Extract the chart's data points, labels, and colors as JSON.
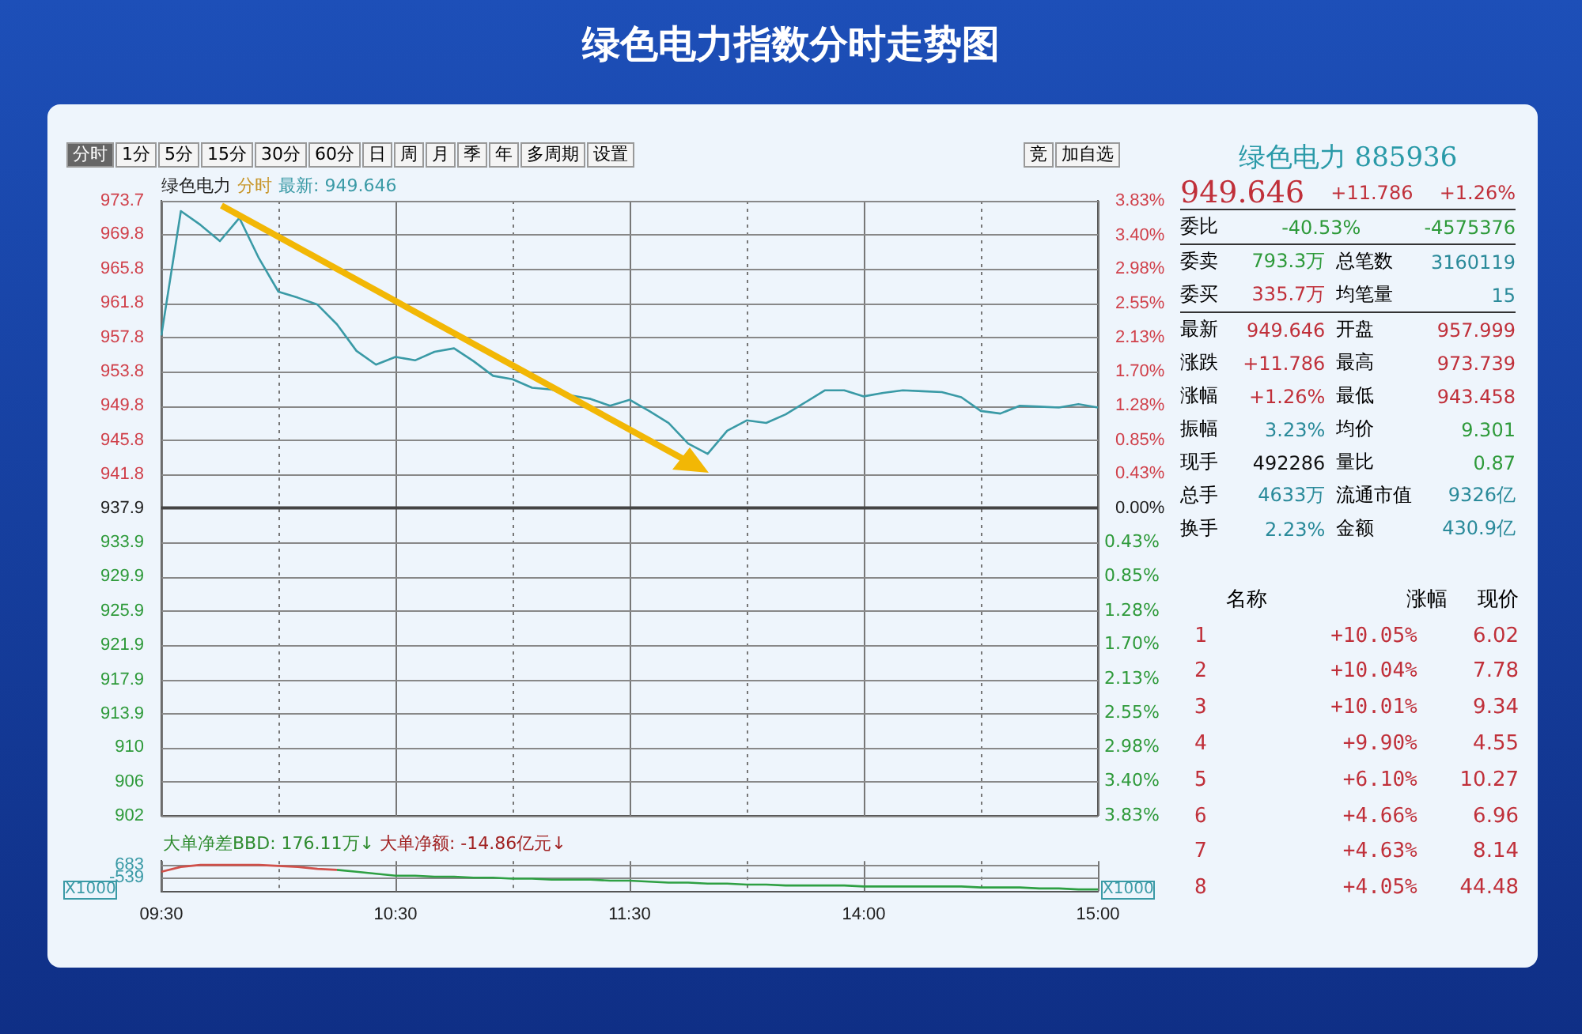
{
  "chart_data": [
    {
      "type": "line",
      "title": "绿色电力指数分时走势图",
      "annotations": [
        "绿色电力",
        "分时",
        "最新: 949.646"
      ],
      "categories": [
        null,
        null,
        null,
        null,
        null,
        null,
        null,
        null,
        null,
        null,
        null,
        null,
        null,
        null,
        null,
        null,
        null,
        null,
        null,
        null,
        null,
        null,
        null,
        null,
        null,
        null,
        null,
        null,
        null,
        null,
        null,
        null,
        null,
        null,
        null,
        null,
        null,
        null,
        null,
        null,
        null,
        null,
        null,
        null,
        null,
        null,
        null,
        null,
        null
      ],
      "ylim": [
        902.0,
        973.7
      ],
      "yticks": [
        973.7,
        969.8,
        965.8,
        961.8,
        957.8,
        953.8,
        949.8,
        945.8,
        941.8,
        937.9,
        933.9,
        929.9,
        925.9,
        921.9,
        917.9,
        913.9,
        910.0,
        906.0,
        902.0
      ],
      "y2lim": [
        -3.83,
        3.83
      ],
      "y2ticks": [
        {
          "value": 3.83,
          "label": "3.83%"
        },
        {
          "value": 3.4,
          "label": "3.40%"
        },
        {
          "value": 2.98,
          "label": "2.98%"
        },
        {
          "value": 2.55,
          "label": "2.55%"
        },
        {
          "value": 2.13,
          "label": "2.13%"
        },
        {
          "value": 1.7,
          "label": "1.70%"
        },
        {
          "value": 1.28,
          "label": "1.28%"
        },
        {
          "value": 0.85,
          "label": "0.85%"
        },
        {
          "value": 0.43,
          "label": "0.43%"
        },
        {
          "value": 0,
          "label": "0.00%"
        }
      ],
      "y3lim": [
        3.83,
        -3.83
      ],
      "y3ticks": [
        {
          "value": 0.43,
          "label": "0.43%"
        },
        {
          "value": 0.85,
          "label": "0.85%"
        },
        {
          "value": 1.28,
          "label": "1.28%"
        },
        {
          "value": 1.7,
          "label": "1.70%"
        },
        {
          "value": 2.13,
          "label": "2.13%"
        },
        {
          "value": 2.55,
          "label": "2.55%"
        },
        {
          "value": 2.98,
          "label": "2.98%"
        },
        {
          "value": 3.4,
          "label": "3.40%"
        },
        {
          "value": 3.83,
          "label": "3.83%"
        }
      ],
      "ref_lines": [
        {
          "axis": "y",
          "value": 937.9,
          "color": "#444444"
        }
      ],
      "grid": true,
      "tick_labels": "y",
      "legend": false,
      "marker": "none",
      "line_style": "solid",
      "series": [
        {
          "color": "#3a9aa6",
          "values": [
            958.0,
            972.5,
            970.9,
            969.0,
            971.7,
            967.0,
            963.1,
            962.4,
            961.6,
            959.3,
            956.2,
            954.6,
            955.5,
            955.1,
            956.1,
            956.5,
            955.0,
            953.3,
            952.9,
            951.9,
            951.7,
            951.0,
            950.6,
            949.8,
            950.5,
            949.2,
            947.8,
            945.4,
            944.2,
            946.9,
            948.1,
            947.8,
            948.8,
            950.2,
            951.6,
            951.6,
            950.9,
            951.3,
            951.6,
            951.5,
            951.4,
            950.8,
            949.2,
            948.9,
            949.8,
            949.7,
            949.6,
            950.0,
            949.6
          ]
        }
      ]
    },
    {
      "type": "line",
      "annotations": [
        "大单净差BBD: 176.11万↓",
        "大单净额: -14.86亿元↓",
        "X1000",
        "X1000"
      ],
      "categories": [
        "09:30",
        null,
        null,
        null,
        null,
        null,
        null,
        null,
        null,
        null,
        null,
        null,
        "10:30",
        null,
        null,
        null,
        null,
        null,
        null,
        null,
        null,
        null,
        null,
        null,
        "11:30",
        null,
        null,
        null,
        null,
        null,
        null,
        null,
        null,
        null,
        null,
        null,
        "14:00",
        null,
        null,
        null,
        null,
        null,
        null,
        null,
        null,
        null,
        null,
        null,
        "15:00"
      ],
      "ylim": [
        -2000,
        1100
      ],
      "yticks": [
        683,
        -539
      ],
      "grid": true,
      "legend": false,
      "marker": "none",
      "line_style": "solid",
      "series": [
        {
          "color": "#d0504a",
          "values": [
            0,
            500,
            700,
            700,
            700,
            700,
            600,
            500,
            300,
            200,
            null,
            null,
            null,
            null,
            null,
            null,
            null,
            null,
            null,
            null,
            null,
            null,
            null,
            null,
            null,
            null,
            null,
            null,
            null,
            null,
            null,
            null,
            null,
            null,
            null,
            null,
            null,
            null,
            null,
            null,
            null,
            null,
            null,
            null,
            null,
            null,
            null,
            null,
            null
          ]
        },
        {
          "color": "#2ea043",
          "values": [
            null,
            null,
            null,
            null,
            null,
            null,
            null,
            null,
            null,
            200,
            0,
            -200,
            -400,
            -400,
            -500,
            -500,
            -600,
            -600,
            -700,
            -700,
            -800,
            -800,
            -800,
            -900,
            -900,
            -1000,
            -1100,
            -1100,
            -1200,
            -1200,
            -1300,
            -1300,
            -1400,
            -1400,
            -1400,
            -1400,
            -1500,
            -1500,
            -1500,
            -1500,
            -1500,
            -1500,
            -1600,
            -1600,
            -1600,
            -1700,
            -1700,
            -1800,
            -1800
          ]
        }
      ]
    },
    {
      "type": "other",
      "annotations": [
        "分时",
        "1分",
        "5分",
        "15分",
        "30分",
        "60分",
        "日",
        "周",
        "月",
        "季",
        "年",
        "多周期",
        "设置",
        "竞",
        "加自选"
      ]
    },
    {
      "type": "other",
      "annotations": [
        "绿色电力 885936",
        "949.646",
        "+11.786",
        "+1.26%",
        "委比",
        "-40.53%",
        "-4575376",
        "委卖",
        "793.3万",
        "总笔数",
        "3160119",
        "委买",
        "335.7万",
        "均笔量",
        "15",
        "最新",
        "949.646",
        "开盘",
        "957.999",
        "涨跌",
        "+11.786",
        "最高",
        "973.739",
        "涨幅",
        "+1.26%",
        "最低",
        "943.458",
        "振幅",
        "3.23%",
        "均价",
        "9.301",
        "现手",
        "492286",
        "量比",
        "0.87",
        "总手",
        "4633万",
        "流通市值",
        "9326亿",
        "换手",
        "2.23%",
        "金额",
        "430.9亿",
        "名称",
        "涨幅",
        "现价",
        "1",
        "+10.05%",
        "6.02",
        "2",
        "+10.04%",
        "7.78",
        "3",
        "+10.01%",
        "9.34",
        "4",
        "+9.90%",
        "4.55",
        "5",
        "+6.10%",
        "10.27",
        "6",
        "+4.66%",
        "6.96",
        "7",
        "+4.63%",
        "8.14",
        "8",
        "+4.05%",
        "44.48"
      ]
    }
  ]
}
